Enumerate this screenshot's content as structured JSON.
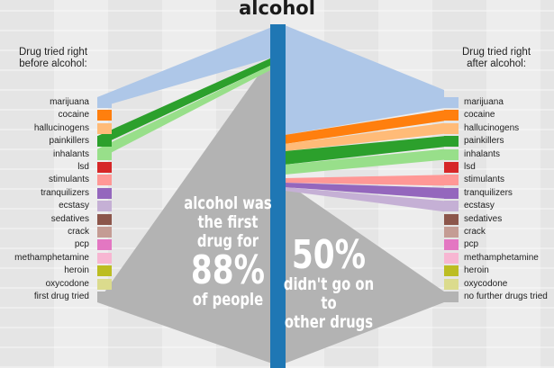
{
  "title": "alcohol",
  "left_heading": [
    "Drug tried right",
    "before alcohol:"
  ],
  "right_heading": [
    "Drug tried right",
    "after alcohol:"
  ],
  "categories": [
    {
      "label": "marijuana",
      "color": "#aec7e8"
    },
    {
      "label": "cocaine",
      "color": "#ff7f0e"
    },
    {
      "label": "hallucinogens",
      "color": "#ffbb78"
    },
    {
      "label": "painkillers",
      "color": "#2ca02c"
    },
    {
      "label": "inhalants",
      "color": "#98df8a"
    },
    {
      "label": "lsd",
      "color": "#d62728"
    },
    {
      "label": "stimulants",
      "color": "#ff9896"
    },
    {
      "label": "tranquilizers",
      "color": "#9467bd"
    },
    {
      "label": "ecstasy",
      "color": "#c5b0d5"
    },
    {
      "label": "sedatives",
      "color": "#8c564b"
    },
    {
      "label": "crack",
      "color": "#c49c94"
    },
    {
      "label": "pcp",
      "color": "#e377c2"
    },
    {
      "label": "methamphetamine",
      "color": "#f7b6d2"
    },
    {
      "label": "heroin",
      "color": "#bcbd22"
    },
    {
      "label": "oxycodone",
      "color": "#dbdb8d"
    }
  ],
  "left_last_label": "first drug tried",
  "right_last_label": "no further drugs tried",
  "grey_color": "#b3b3b3",
  "axis_color": "#1f77b4",
  "left_statement": {
    "line1": "alcohol was",
    "line2": "the first",
    "line3": "drug for",
    "percent": "88%",
    "line4": "of people"
  },
  "right_statement": {
    "percent": "50%",
    "line1": "didn't go on to",
    "line2": "other drugs"
  }
}
